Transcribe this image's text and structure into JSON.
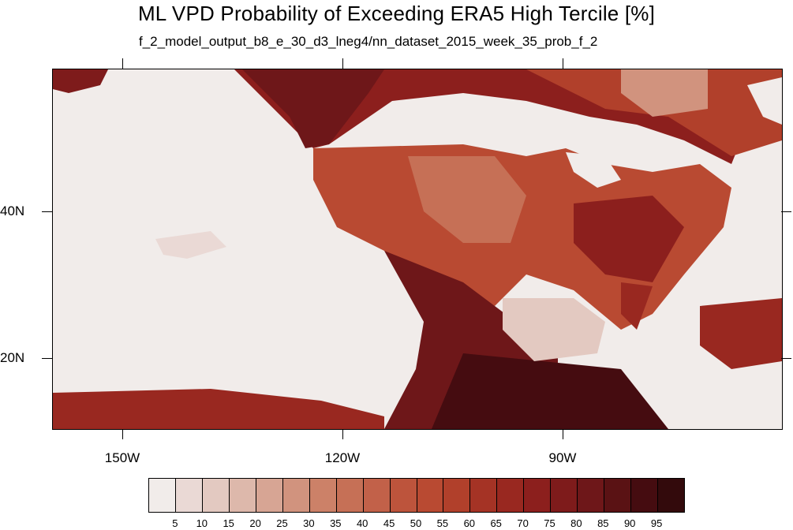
{
  "title": "ML VPD Probability of Exceeding ERA5 High Tercile [%]",
  "subtitle": "f_2_model_output_b8_e_30_d3_lneg4/nn_dataset_2015_week_35_prob_f_2",
  "lat_labels": [
    "40N",
    "20N"
  ],
  "lon_labels": [
    "150W",
    "120W",
    "90W"
  ],
  "colorbar": {
    "labels": [
      "5",
      "10",
      "15",
      "20",
      "25",
      "30",
      "35",
      "40",
      "45",
      "50",
      "55",
      "60",
      "65",
      "70",
      "75",
      "80",
      "85",
      "90",
      "95"
    ],
    "colors": [
      "#f1ecea",
      "#ead9d5",
      "#e3c9c1",
      "#ddb8ab",
      "#d7a594",
      "#d1937e",
      "#cc8168",
      "#c67056",
      "#c26149",
      "#bd543c",
      "#b94a32",
      "#b1402b",
      "#a53325",
      "#992820",
      "#8c1f1d",
      "#7e1b1b",
      "#6e1719",
      "#5a1214",
      "#450c10",
      "#330a0c"
    ]
  },
  "map": {
    "region": "North America / eastern Pacific",
    "lon_range": [
      -160,
      -62
    ],
    "lat_range": [
      10,
      59
    ]
  }
}
